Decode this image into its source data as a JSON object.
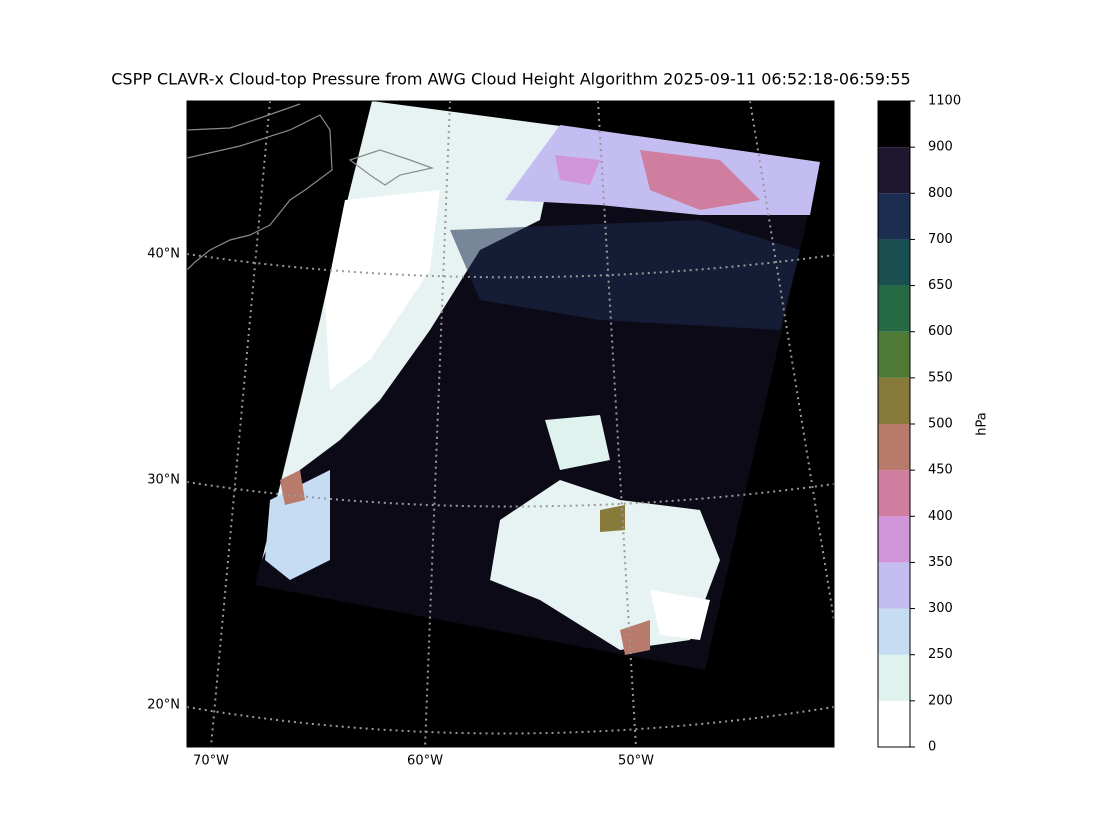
{
  "map": {
    "title": "CSPP CLAVR-x Cloud-top Pressure from AWG Cloud Height Algorithm 2025-09-11 06:52:18-06:59:55",
    "lat_lines": [
      {
        "value": 40,
        "label": "40°N"
      },
      {
        "value": 30,
        "label": "30°N"
      },
      {
        "value": 20,
        "label": "20°N"
      }
    ],
    "lon_lines": [
      {
        "value": -70,
        "label": "70°W"
      },
      {
        "value": -60,
        "label": "60°W"
      },
      {
        "value": -50,
        "label": "50°W"
      }
    ],
    "colorbar": {
      "label": "hPa",
      "ticks": [
        0,
        200,
        250,
        300,
        350,
        400,
        450,
        500,
        550,
        600,
        650,
        700,
        800,
        900,
        1100
      ],
      "colors": [
        "#ffffff",
        "#dff2ee",
        "#c5dcf2",
        "#c4bdf2",
        "#d196d9",
        "#d07ea0",
        "#b87a6a",
        "#877a3a",
        "#4f7a35",
        "#266a43",
        "#1a4f52",
        "#1c2e50",
        "#1f1630",
        "#000000"
      ]
    }
  }
}
